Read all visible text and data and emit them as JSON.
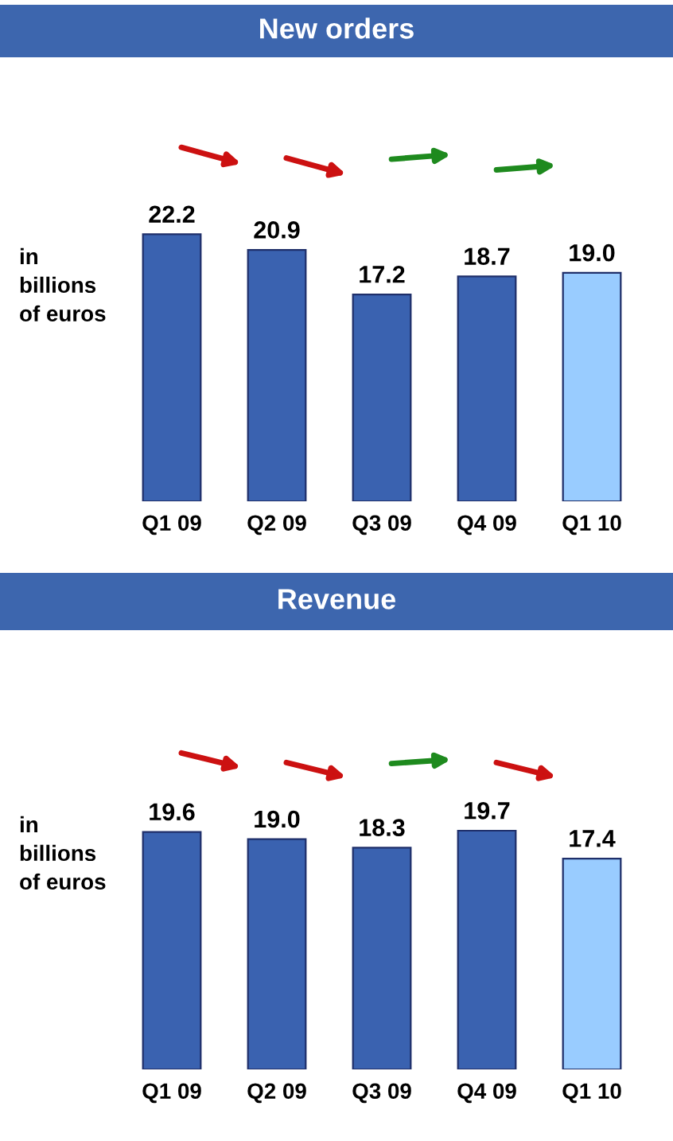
{
  "chart_data": [
    {
      "type": "bar",
      "title": "New orders",
      "ylabel": "in\nbillions\nof euros",
      "categories": [
        "Q1 09",
        "Q2 09",
        "Q3 09",
        "Q4 09",
        "Q1 10"
      ],
      "values": [
        22.2,
        20.9,
        17.2,
        18.7,
        19.0
      ],
      "value_labels": [
        "22.2",
        "20.9",
        "17.2",
        "18.7",
        "19.0"
      ],
      "colors": [
        "#3a62b0",
        "#3a62b0",
        "#3a62b0",
        "#3a62b0",
        "#99ccff"
      ]
    },
    {
      "type": "bar",
      "title": "Revenue",
      "ylabel": "in\nbillions\nof euros",
      "categories": [
        "Q1 09",
        "Q2 09",
        "Q3 09",
        "Q4 09",
        "Q1 10"
      ],
      "values": [
        19.6,
        19.0,
        18.3,
        19.7,
        17.4
      ],
      "value_labels": [
        "19.6",
        "19.0",
        "18.3",
        "19.7",
        "17.4"
      ],
      "colors": [
        "#3a62b0",
        "#3a62b0",
        "#3a62b0",
        "#3a62b0",
        "#99ccff"
      ]
    }
  ]
}
